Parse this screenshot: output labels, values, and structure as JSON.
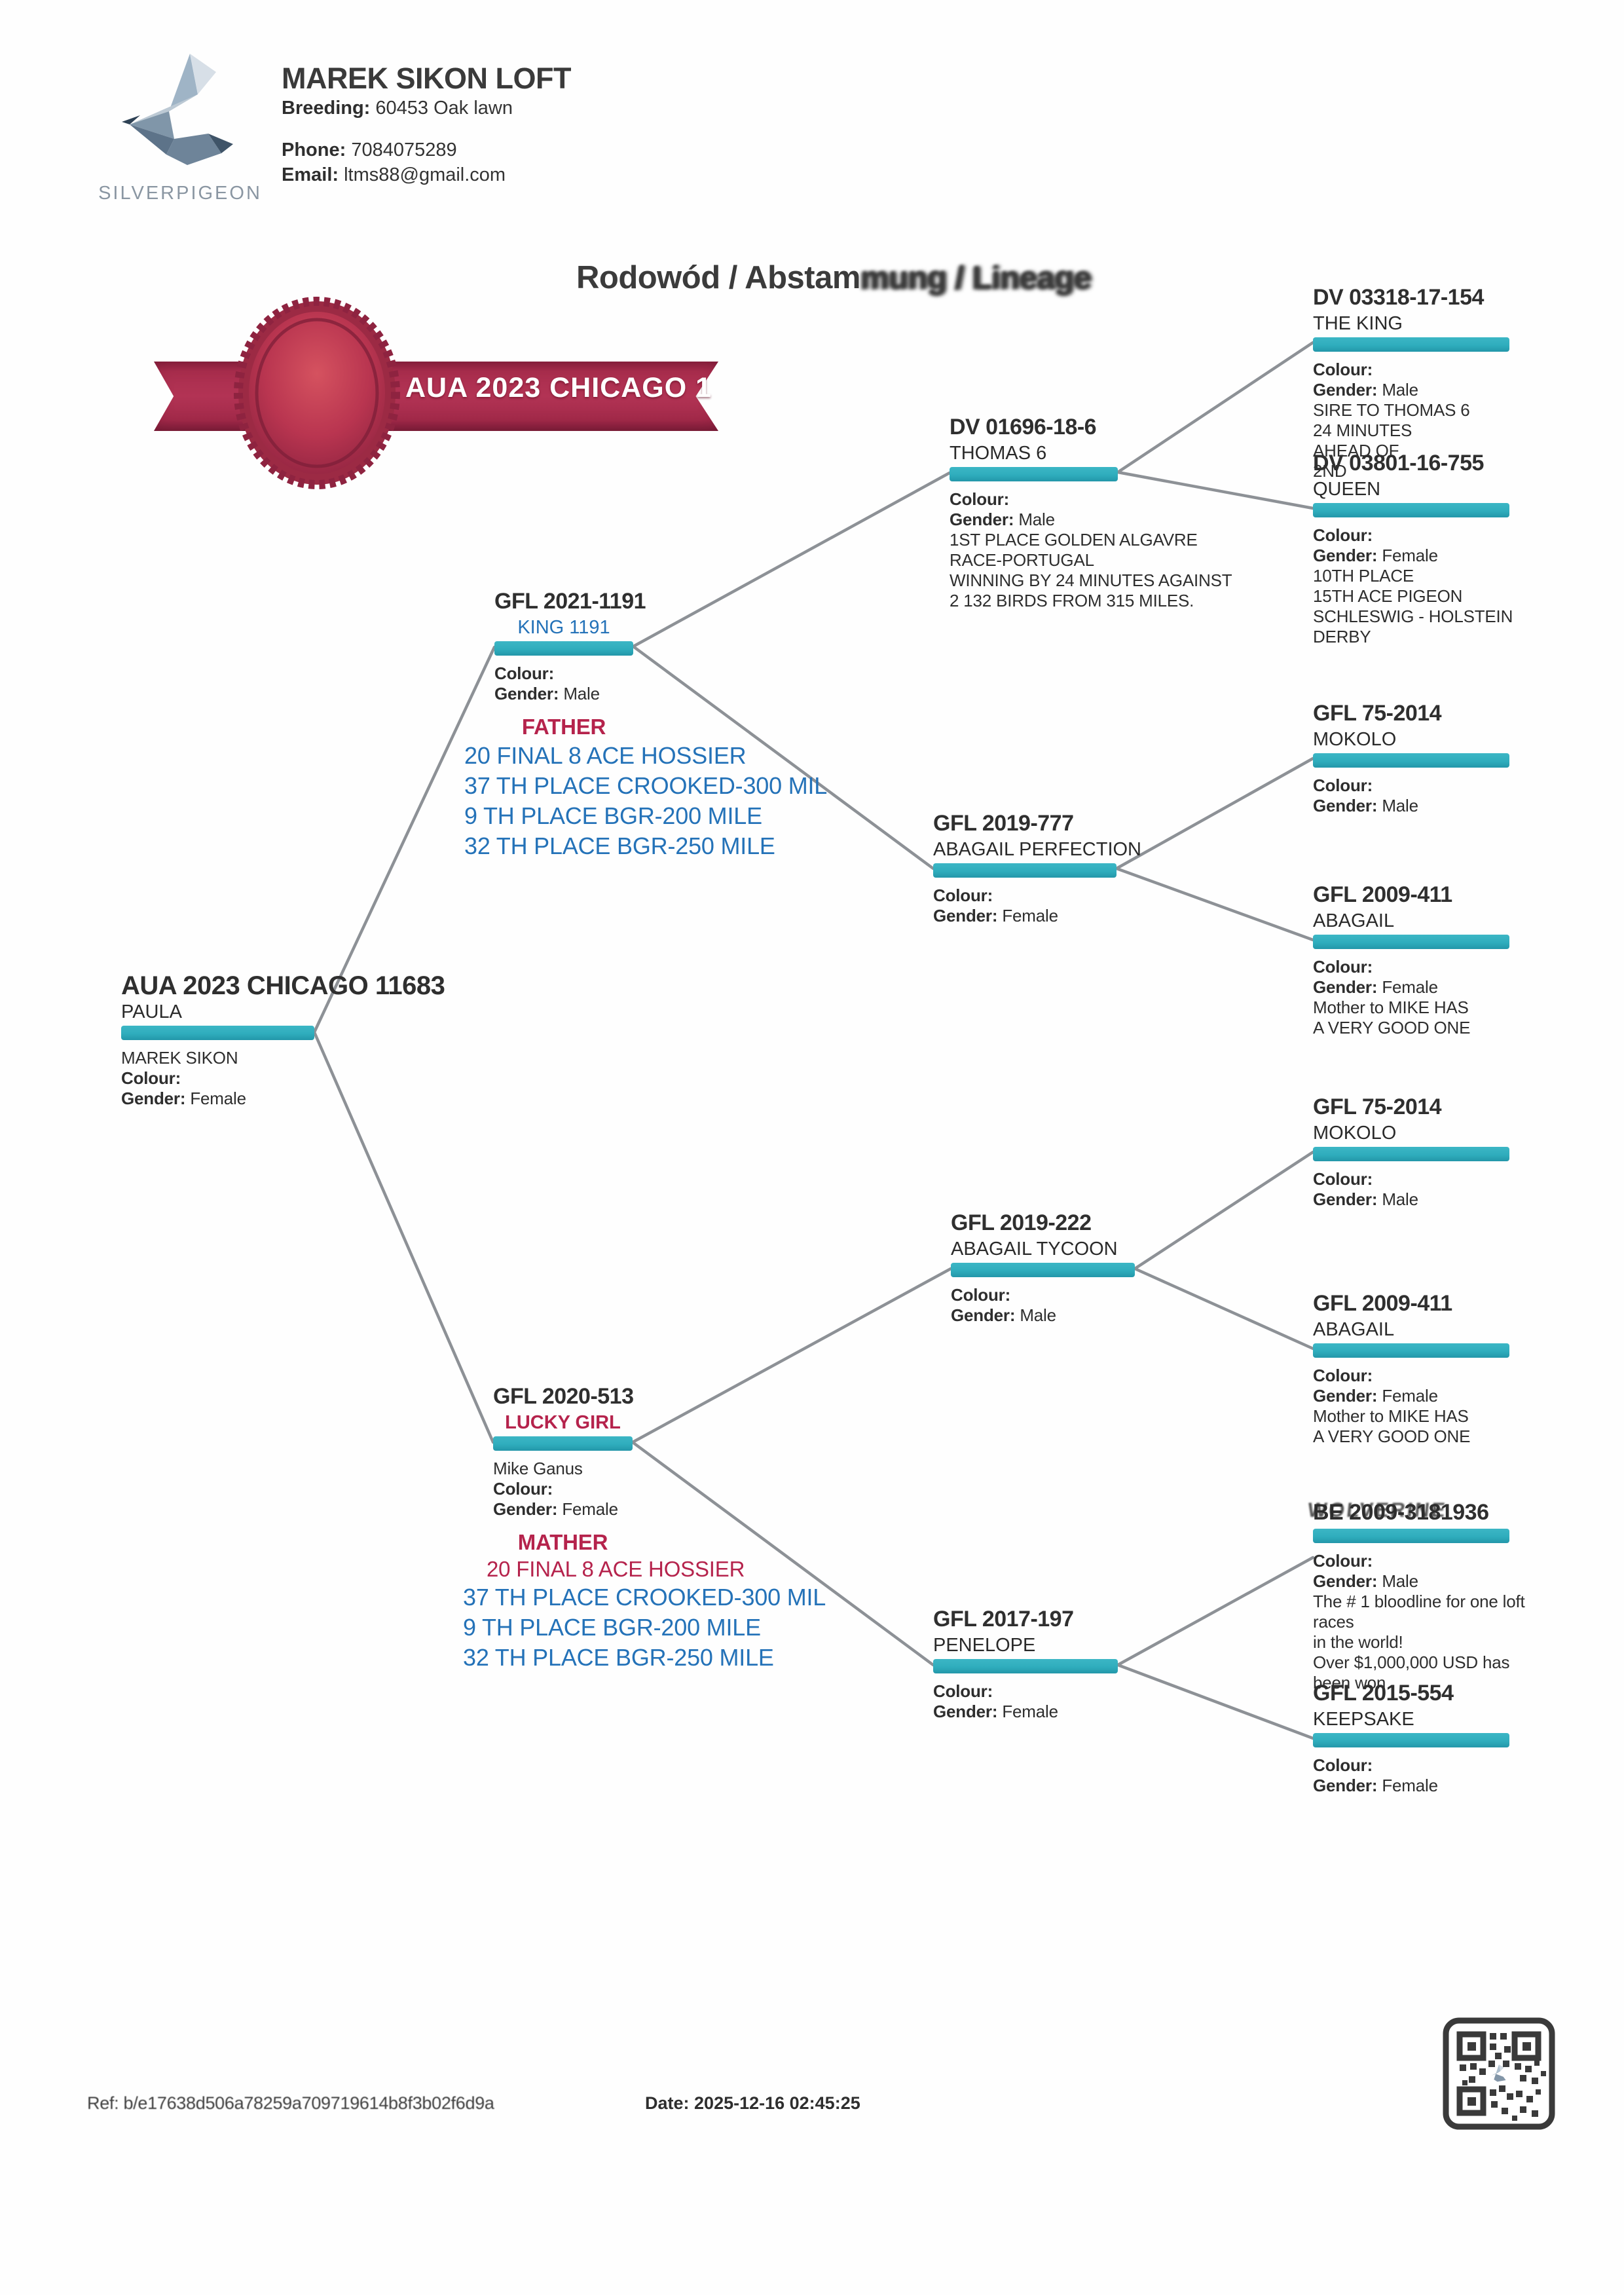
{
  "header": {
    "logo_brand": "SILVERPIGEON",
    "loft_name": "MAREK SIKON LOFT",
    "breeding_label": "Breeding:",
    "breeding_value": "60453 Oak lawn",
    "phone_label": "Phone:",
    "phone_value": "7084075289",
    "email_label": "Email:",
    "email_value": "ltms88@gmail.com"
  },
  "title": {
    "part1": "Rodowód / Abstam",
    "part2": "mung / Lineage"
  },
  "ribbon": {
    "text": "AUA 2023 CHICAGO 1"
  },
  "footer": {
    "ref": "Ref: b/e17638d506a78259a709719614b8f3b02f6d9a",
    "date_label": "Date:",
    "date_value": "2025-12-16 02:45:25"
  },
  "colors": {
    "teal_bar": "#2fadbd",
    "blue_text": "#2472b8",
    "crimson_text": "#b5234c",
    "ribbon_red": "#aa2e4e"
  },
  "nodes": [
    {
      "id": "subject",
      "ring": "AUA 2023 CHICAGO 11683",
      "name": "PAULA",
      "name_style": "dark",
      "lines": [
        {
          "value": "MAREK SIKON"
        },
        {
          "label": "Colour:",
          "value": ""
        },
        {
          "label": "Gender:",
          "value": "Female"
        }
      ]
    },
    {
      "id": "father",
      "ring": "GFL 2021-1191",
      "name": "KING 1191",
      "name_style": "blue",
      "lines": [
        {
          "label": "Colour:",
          "value": ""
        },
        {
          "label": "Gender:",
          "value": "Male"
        },
        {
          "value": "FATHER",
          "cls": "relation"
        },
        {
          "value": "20 FINAL 8 ACE HOSSIER",
          "cls": "perf"
        },
        {
          "value": "37 TH PLACE CROOKED-300 MIL",
          "cls": "perf"
        },
        {
          "value": "9 TH PLACE BGR-200 MILE",
          "cls": "perf"
        },
        {
          "value": "32 TH PLACE BGR-250 MILE",
          "cls": "perf"
        }
      ]
    },
    {
      "id": "mother",
      "ring": "GFL 2020-513",
      "name": "LUCKY GIRL",
      "name_style": "crimson",
      "lines": [
        {
          "value": "Mike Ganus"
        },
        {
          "label": "Colour:",
          "value": ""
        },
        {
          "label": "Gender:",
          "value": "Female"
        },
        {
          "value": "MATHER",
          "cls": "relation"
        },
        {
          "value": "20 FINAL 8 ACE HOSSIER",
          "cls": "perf-red"
        },
        {
          "value": "37 TH PLACE CROOKED-300 MIL",
          "cls": "perf"
        },
        {
          "value": "9 TH PLACE BGR-200 MILE",
          "cls": "perf"
        },
        {
          "value": "32 TH PLACE BGR-250 MILE",
          "cls": "perf"
        }
      ]
    },
    {
      "id": "gp1",
      "ring": "DV 01696-18-6",
      "name": "THOMAS 6",
      "name_style": "dark",
      "lines": [
        {
          "label": "Colour:",
          "value": ""
        },
        {
          "label": "Gender:",
          "value": "Male"
        },
        {
          "value": "1ST PLACE GOLDEN ALGAVRE"
        },
        {
          "value": "RACE-PORTUGAL"
        },
        {
          "value": "WINNING BY 24 MINUTES AGAINST"
        },
        {
          "value": "2 132 BIRDS FROM 315 MILES."
        }
      ]
    },
    {
      "id": "gp2",
      "ring": "GFL 2019-777",
      "name": "ABAGAIL PERFECTION",
      "name_style": "dark",
      "lines": [
        {
          "label": "Colour:",
          "value": ""
        },
        {
          "label": "Gender:",
          "value": "Female"
        }
      ]
    },
    {
      "id": "gp3",
      "ring": "GFL 2019-222",
      "name": "ABAGAIL TYCOON",
      "name_style": "dark",
      "lines": [
        {
          "label": "Colour:",
          "value": ""
        },
        {
          "label": "Gender:",
          "value": "Male"
        }
      ]
    },
    {
      "id": "gp4",
      "ring": "GFL 2017-197",
      "name": "PENELOPE",
      "name_style": "dark",
      "lines": [
        {
          "label": "Colour:",
          "value": ""
        },
        {
          "label": "Gender:",
          "value": "Female"
        }
      ]
    },
    {
      "id": "ggp1",
      "ring": "DV 03318-17-154",
      "name": "THE KING",
      "name_style": "dark",
      "lines": [
        {
          "label": "Colour:",
          "value": ""
        },
        {
          "label": "Gender:",
          "value": "Male"
        },
        {
          "value": "SIRE TO THOMAS 6"
        },
        {
          "value": "24 MINUTES"
        },
        {
          "value": "AHEAD OF"
        },
        {
          "value": "2ND"
        }
      ]
    },
    {
      "id": "ggp2",
      "ring": "DV 03801-16-755",
      "name": "QUEEN",
      "name_style": "dark",
      "lines": [
        {
          "label": "Colour:",
          "value": ""
        },
        {
          "label": "Gender:",
          "value": "Female"
        },
        {
          "value": "10TH PLACE"
        },
        {
          "value": "15TH ACE PIGEON"
        },
        {
          "value": "SCHLESWIG - HOLSTEIN"
        },
        {
          "value": "DERBY"
        }
      ]
    },
    {
      "id": "ggp3",
      "ring": "GFL 75-2014",
      "name": "MOKOLO",
      "name_style": "dark",
      "lines": [
        {
          "label": "Colour:",
          "value": ""
        },
        {
          "label": "Gender:",
          "value": "Male"
        }
      ]
    },
    {
      "id": "ggp4",
      "ring": "GFL 2009-411",
      "name": "ABAGAIL",
      "name_style": "dark",
      "lines": [
        {
          "label": "Colour:",
          "value": ""
        },
        {
          "label": "Gender:",
          "value": "Female"
        },
        {
          "value": "Mother to MIKE HAS"
        },
        {
          "value": "A VERY GOOD ONE"
        }
      ]
    },
    {
      "id": "ggp5",
      "ring": "GFL 75-2014",
      "name": "MOKOLO",
      "name_style": "dark",
      "lines": [
        {
          "label": "Colour:",
          "value": ""
        },
        {
          "label": "Gender:",
          "value": "Male"
        }
      ]
    },
    {
      "id": "ggp6",
      "ring": "GFL 2009-411",
      "name": "ABAGAIL",
      "name_style": "dark",
      "lines": [
        {
          "label": "Colour:",
          "value": ""
        },
        {
          "label": "Gender:",
          "value": "Female"
        },
        {
          "value": "Mother to MIKE HAS"
        },
        {
          "value": "A VERY GOOD ONE"
        }
      ]
    },
    {
      "id": "ggp7",
      "ring": "BE 2009-3181936",
      "name": "",
      "name_style": "dark",
      "overlay_name": "WOLVERINE",
      "lines": [
        {
          "label": "Colour:",
          "value": ""
        },
        {
          "label": "Gender:",
          "value": "Male"
        },
        {
          "value": "The # 1 bloodline for one loft"
        },
        {
          "value": "races"
        },
        {
          "value": "in the world!"
        },
        {
          "value": "Over $1,000,000 USD has"
        },
        {
          "value": "been won"
        }
      ]
    },
    {
      "id": "ggp8",
      "ring": "GFL 2015-554",
      "name": "KEEPSAKE",
      "name_style": "dark",
      "lines": [
        {
          "label": "Colour:",
          "value": ""
        },
        {
          "label": "Gender:",
          "value": "Female"
        }
      ]
    }
  ]
}
